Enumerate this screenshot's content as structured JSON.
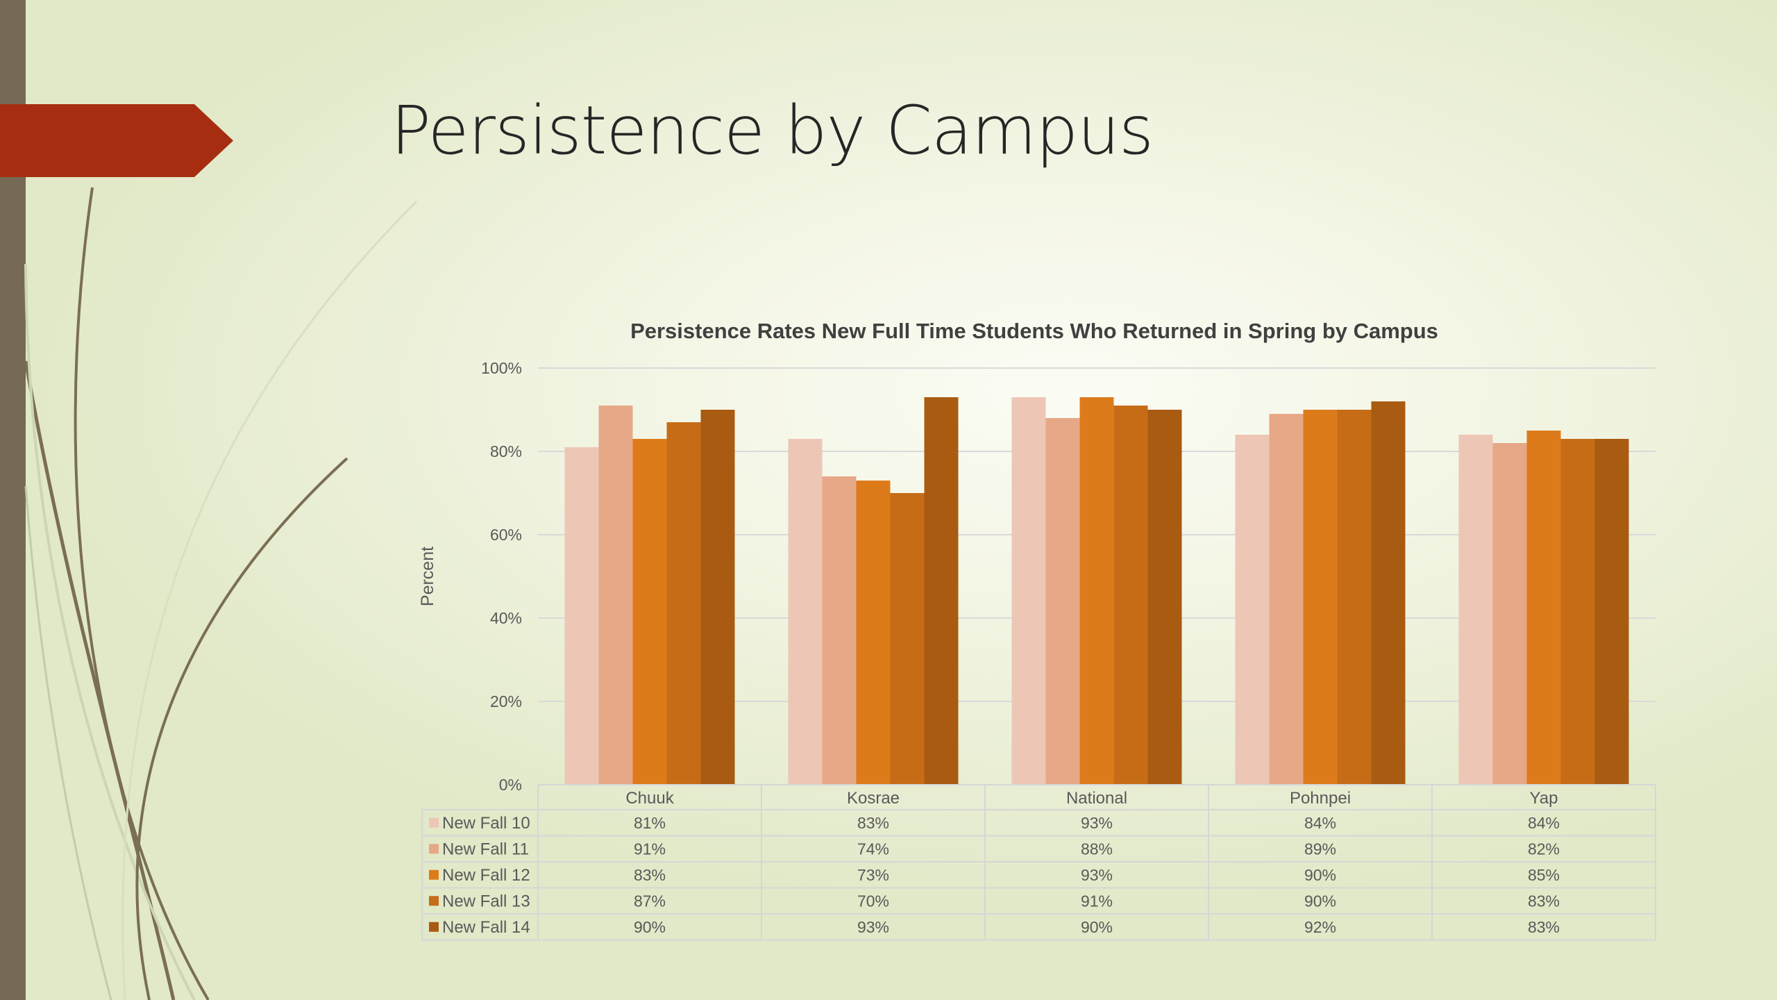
{
  "slide": {
    "title": "Persistence by Campus"
  },
  "colors": {
    "accent_tag": "#a62d10",
    "left_bar": "#766a55",
    "decor_lines": "#7a6e54"
  },
  "chart_data": {
    "type": "bar",
    "title": "Persistence Rates New Full Time Students Who Returned in Spring by Campus",
    "ylabel": "Percent",
    "xlabel": "",
    "ylim": [
      0,
      100
    ],
    "yticks": [
      0,
      20,
      40,
      60,
      80,
      100
    ],
    "ytick_labels": [
      "0%",
      "20%",
      "40%",
      "60%",
      "80%",
      "100%"
    ],
    "grid": true,
    "legend": "data-table",
    "categories": [
      "Chuuk",
      "Kosrae",
      "National",
      "Pohnpei",
      "Yap"
    ],
    "series": [
      {
        "name": "New Fall 10",
        "color": "#edc6b6",
        "values": [
          81,
          83,
          93,
          84,
          84
        ],
        "labels": [
          "81%",
          "83%",
          "93%",
          "84%",
          "84%"
        ]
      },
      {
        "name": "New Fall 11",
        "color": "#e7a887",
        "values": [
          91,
          74,
          88,
          89,
          82
        ],
        "labels": [
          "91%",
          "74%",
          "88%",
          "89%",
          "82%"
        ]
      },
      {
        "name": "New Fall 12",
        "color": "#dd7b1b",
        "values": [
          83,
          73,
          93,
          90,
          85
        ],
        "labels": [
          "83%",
          "73%",
          "93%",
          "90%",
          "85%"
        ]
      },
      {
        "name": "New Fall 13",
        "color": "#c66c17",
        "values": [
          87,
          70,
          91,
          90,
          83
        ],
        "labels": [
          "87%",
          "70%",
          "91%",
          "90%",
          "83%"
        ]
      },
      {
        "name": "New Fall 14",
        "color": "#a95b12",
        "values": [
          90,
          93,
          90,
          92,
          83
        ],
        "labels": [
          "90%",
          "93%",
          "90%",
          "92%",
          "83%"
        ]
      }
    ]
  }
}
